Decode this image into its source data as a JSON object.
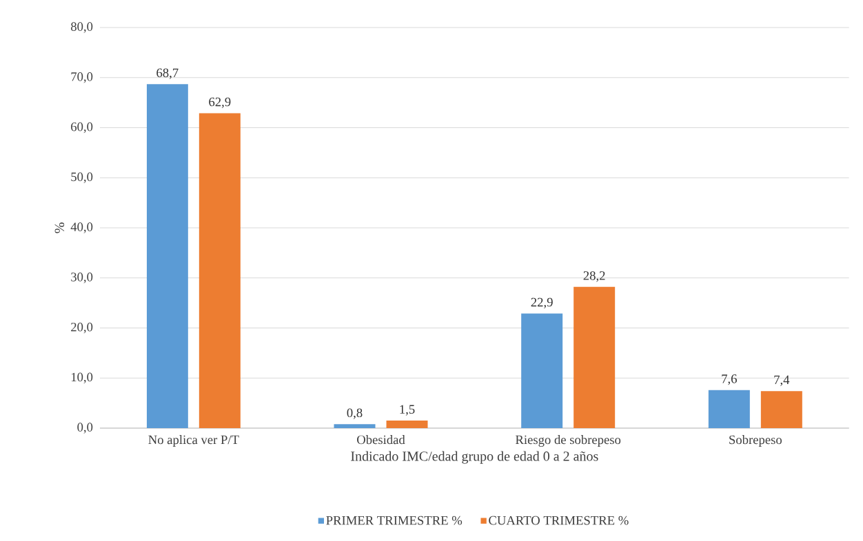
{
  "chart_data": {
    "type": "bar",
    "xlabel": "Indicado IMC/edad grupo de edad 0 a 2 años",
    "ylabel": "%",
    "categories": [
      "No aplica ver P/T",
      "Obesidad",
      "Riesgo de sobrepeso",
      "Sobrepeso"
    ],
    "series": [
      {
        "name": "PRIMER TRIMESTRE %",
        "color": "#5b9bd5",
        "values": [
          68.7,
          0.8,
          22.9,
          7.6
        ],
        "value_labels": [
          "68,7",
          "0,8",
          "22,9",
          "7,6"
        ]
      },
      {
        "name": "CUARTO TRIMESTRE %",
        "color": "#ed7d31",
        "values": [
          62.9,
          1.5,
          28.2,
          7.4
        ],
        "value_labels": [
          "62,9",
          "1,5",
          "28,2",
          "7,4"
        ]
      }
    ],
    "ylim": [
      0,
      80
    ],
    "yticks": [
      {
        "value": 0,
        "label": "0,0"
      },
      {
        "value": 10,
        "label": "10,0"
      },
      {
        "value": 20,
        "label": "20,0"
      },
      {
        "value": 30,
        "label": "30,0"
      },
      {
        "value": 40,
        "label": "40,0"
      },
      {
        "value": 50,
        "label": "50,0"
      },
      {
        "value": 60,
        "label": "60,0"
      },
      {
        "value": 70,
        "label": "70,0"
      },
      {
        "value": 80,
        "label": "80,0"
      }
    ],
    "grid": "y",
    "legend": "bottom"
  }
}
